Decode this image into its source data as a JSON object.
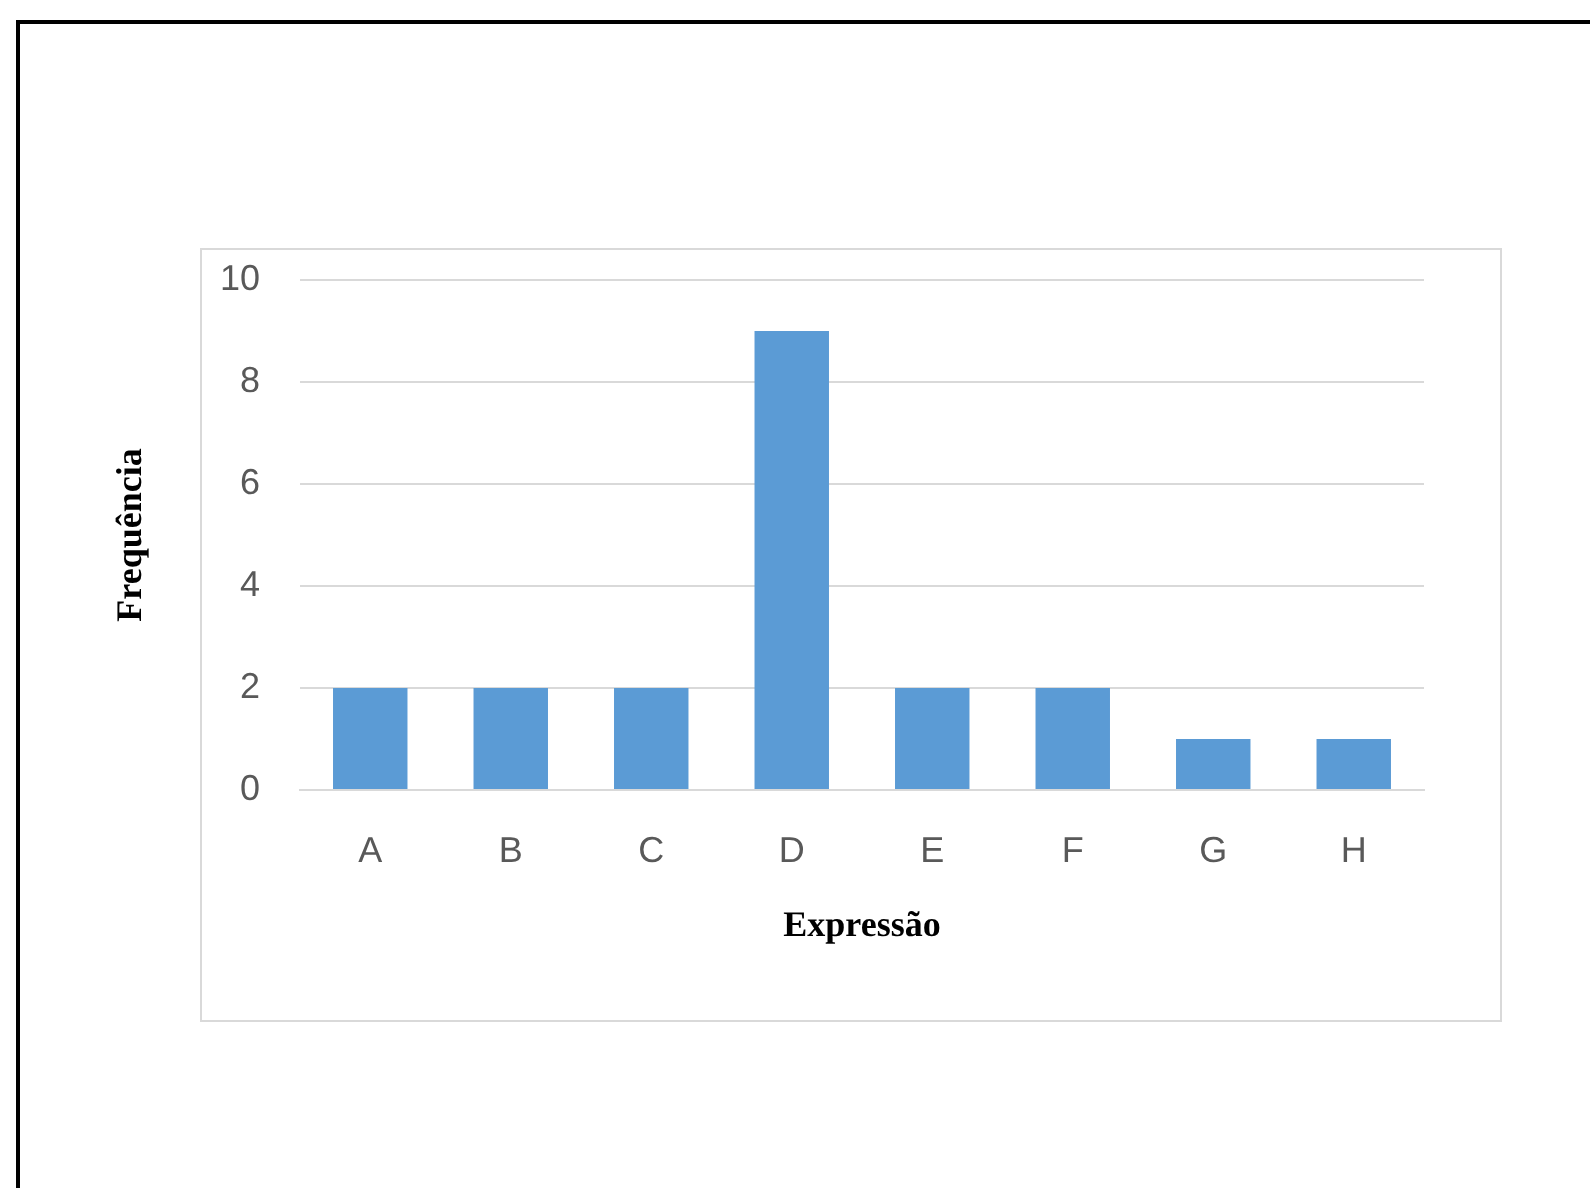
{
  "chart_data": {
    "type": "bar",
    "xlabel": "Expressão",
    "ylabel": "Frequência",
    "categories": [
      "A",
      "B",
      "C",
      "D",
      "E",
      "F",
      "G",
      "H"
    ],
    "values": [
      2,
      2,
      2,
      9,
      2,
      2,
      1,
      1
    ],
    "color": "#5b9bd5",
    "ylim": [
      0,
      10
    ],
    "yticks": [
      0,
      2,
      4,
      6,
      8,
      10
    ],
    "grid": "y"
  }
}
